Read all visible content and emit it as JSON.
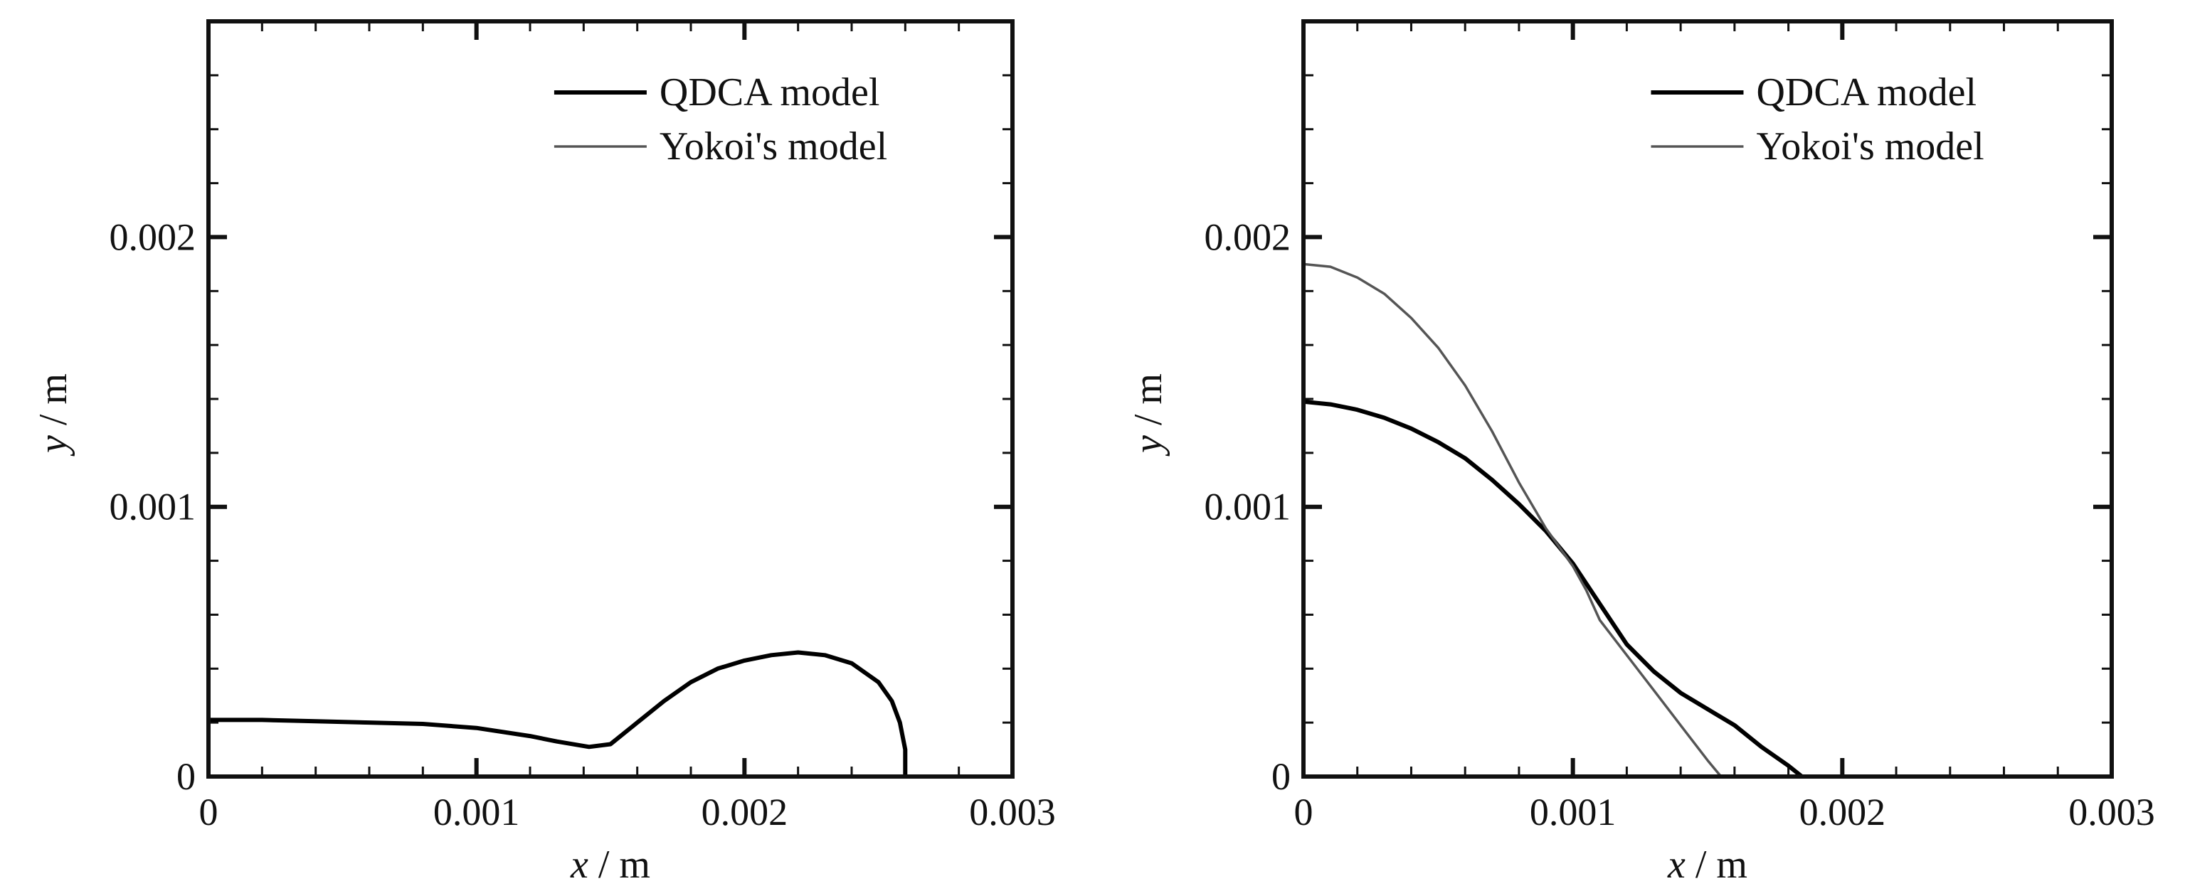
{
  "chart_data": [
    {
      "type": "line",
      "title": "",
      "xlabel_var": "x",
      "xlabel_unit": "/ m",
      "ylabel_var": "y",
      "ylabel_unit": "/ m",
      "xlim": [
        0,
        0.003
      ],
      "ylim": [
        0,
        0.0028
      ],
      "x_ticks": [
        "0",
        "0.001",
        "0.002",
        "0.003"
      ],
      "y_ticks": [
        "0",
        "0.001",
        "0.002"
      ],
      "x_tick_values": [
        0,
        0.001,
        0.002,
        0.003
      ],
      "y_tick_values": [
        0,
        0.001,
        0.002
      ],
      "grid": false,
      "legend_position": "top-right",
      "series": [
        {
          "name": "QDCA model",
          "color": "#000000",
          "x": [
            0,
            0.0002,
            0.0004,
            0.0006,
            0.0008,
            0.001,
            0.0012,
            0.0013,
            0.00142,
            0.0015,
            0.0016,
            0.0017,
            0.0018,
            0.0019,
            0.002,
            0.0021,
            0.0022,
            0.0023,
            0.0024,
            0.0025,
            0.00255,
            0.00258,
            0.0026,
            0.0026
          ],
          "y": [
            0.00021,
            0.00021,
            0.000205,
            0.0002,
            0.000195,
            0.00018,
            0.00015,
            0.00013,
            0.00011,
            0.00012,
            0.0002,
            0.00028,
            0.00035,
            0.0004,
            0.00043,
            0.00045,
            0.00046,
            0.00045,
            0.00042,
            0.00035,
            0.00028,
            0.0002,
            0.0001,
            0
          ]
        },
        {
          "name": "Yokoi's model",
          "color": "#555555",
          "x": [
            0,
            0.0006
          ],
          "y": [
            0,
            0
          ]
        }
      ]
    },
    {
      "type": "line",
      "title": "",
      "xlabel_var": "x",
      "xlabel_unit": "/ m",
      "ylabel_var": "y",
      "ylabel_unit": "/ m",
      "xlim": [
        0,
        0.003
      ],
      "ylim": [
        0,
        0.0028
      ],
      "x_ticks": [
        "0",
        "0.001",
        "0.002",
        "0.003"
      ],
      "y_ticks": [
        "0",
        "0.001",
        "0.002"
      ],
      "x_tick_values": [
        0,
        0.001,
        0.002,
        0.003
      ],
      "y_tick_values": [
        0,
        0.001,
        0.002
      ],
      "grid": false,
      "legend_position": "top-right",
      "series": [
        {
          "name": "QDCA model",
          "color": "#000000",
          "x": [
            0,
            0.0001,
            0.0002,
            0.0003,
            0.0004,
            0.0005,
            0.0006,
            0.0007,
            0.0008,
            0.0009,
            0.001,
            0.0011,
            0.0012,
            0.0013,
            0.0014,
            0.0015,
            0.0016,
            0.0017,
            0.0018,
            0.00185
          ],
          "y": [
            0.00139,
            0.00138,
            0.00136,
            0.00133,
            0.00129,
            0.00124,
            0.00118,
            0.0011,
            0.00101,
            0.00091,
            0.00079,
            0.00064,
            0.00049,
            0.00039,
            0.00031,
            0.00025,
            0.00019,
            0.00011,
            4e-05,
            0
          ]
        },
        {
          "name": "Yokoi's model",
          "color": "#555555",
          "x": [
            0,
            0.0001,
            0.0002,
            0.0003,
            0.0004,
            0.0005,
            0.0006,
            0.0007,
            0.0008,
            0.0009,
            0.001,
            0.00105,
            0.0011,
            0.0012,
            0.0013,
            0.0014,
            0.0015,
            0.00155
          ],
          "y": [
            0.0019,
            0.00189,
            0.00185,
            0.00179,
            0.0017,
            0.00159,
            0.00145,
            0.00128,
            0.00109,
            0.00092,
            0.00078,
            0.00069,
            0.00058,
            0.00045,
            0.00032,
            0.00019,
            6e-05,
            0
          ]
        }
      ]
    }
  ]
}
